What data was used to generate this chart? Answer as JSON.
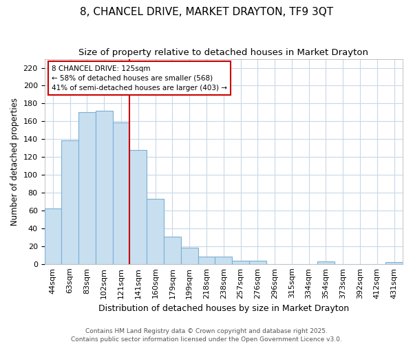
{
  "title": "8, CHANCEL DRIVE, MARKET DRAYTON, TF9 3QT",
  "subtitle": "Size of property relative to detached houses in Market Drayton",
  "xlabel": "Distribution of detached houses by size in Market Drayton",
  "ylabel": "Number of detached properties",
  "categories": [
    "44sqm",
    "63sqm",
    "83sqm",
    "102sqm",
    "121sqm",
    "141sqm",
    "160sqm",
    "179sqm",
    "199sqm",
    "218sqm",
    "238sqm",
    "257sqm",
    "276sqm",
    "296sqm",
    "315sqm",
    "334sqm",
    "354sqm",
    "373sqm",
    "392sqm",
    "412sqm",
    "431sqm"
  ],
  "values": [
    62,
    139,
    170,
    172,
    159,
    128,
    73,
    31,
    18,
    8,
    8,
    4,
    4,
    0,
    0,
    0,
    3,
    0,
    0,
    0,
    2
  ],
  "bar_color": "#c8dff0",
  "bar_edge_color": "#7ab0d4",
  "vline_x_index": 4,
  "vline_color": "#cc0000",
  "ylim": [
    0,
    230
  ],
  "yticks": [
    0,
    20,
    40,
    60,
    80,
    100,
    120,
    140,
    160,
    180,
    200,
    220
  ],
  "annotation_text": "8 CHANCEL DRIVE: 125sqm\n← 58% of detached houses are smaller (568)\n41% of semi-detached houses are larger (403) →",
  "annotation_box_color": "#ffffff",
  "annotation_box_edge_color": "#cc0000",
  "background_color": "#ffffff",
  "plot_bg_color": "#ffffff",
  "grid_color": "#c8d8e8",
  "footnote": "Contains HM Land Registry data © Crown copyright and database right 2025.\nContains public sector information licensed under the Open Government Licence v3.0.",
  "title_fontsize": 11,
  "subtitle_fontsize": 9.5,
  "xlabel_fontsize": 9,
  "ylabel_fontsize": 8.5,
  "tick_fontsize": 8,
  "footnote_fontsize": 6.5
}
